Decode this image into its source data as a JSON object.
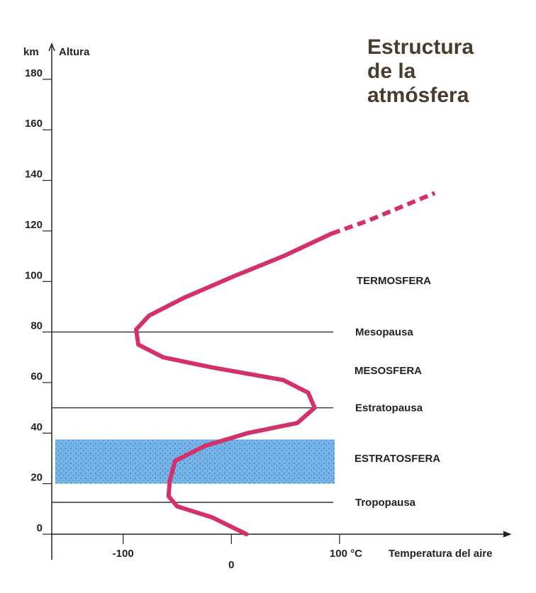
{
  "chart_data": {
    "type": "line",
    "title": "Estructura de la atmósfera",
    "y_unit": "km",
    "ylabel": "Altura",
    "xlabel": "Temperatura del aire",
    "xlim": [
      -166,
      258
    ],
    "ylim": [
      0,
      194
    ],
    "xticks": [
      -100,
      0,
      {
        "value": 100,
        "label": "100 °C"
      }
    ],
    "yticks": [
      0,
      20,
      40,
      60,
      80,
      100,
      120,
      140,
      160,
      180
    ],
    "x": [
      14,
      -18,
      -50,
      -58,
      -57,
      -52,
      -24,
      15,
      61,
      77,
      71,
      48,
      -18,
      -63,
      -86,
      -88,
      -76,
      -44,
      2,
      48,
      93,
      126,
      188
    ],
    "series": [
      {
        "color": "#d4306a",
        "dashed": false,
        "values": [
          0,
          6.7,
          11,
          15,
          21,
          29,
          35,
          40,
          44,
          50,
          56,
          61,
          66,
          70,
          75,
          81,
          86.5,
          93.5,
          102,
          110,
          119,
          null,
          null
        ]
      },
      {
        "color": "#d4306a",
        "dashed": true,
        "values": [
          null,
          null,
          null,
          null,
          null,
          null,
          null,
          null,
          null,
          null,
          null,
          null,
          null,
          null,
          null,
          null,
          null,
          null,
          null,
          null,
          119,
          124,
          135
        ]
      }
    ],
    "boundaries": [
      {
        "label": "Tropopausa",
        "value": 12.6
      },
      {
        "label": "Estratopausa",
        "value": 50
      },
      {
        "label": "Mesopausa",
        "value": 80
      }
    ],
    "band": {
      "ylim": [
        20,
        37.5
      ],
      "color": "#74b4ea"
    },
    "layers": [
      "TERMOSFERA",
      "MESOSFERA",
      "ESTRATOSFERA"
    ]
  }
}
